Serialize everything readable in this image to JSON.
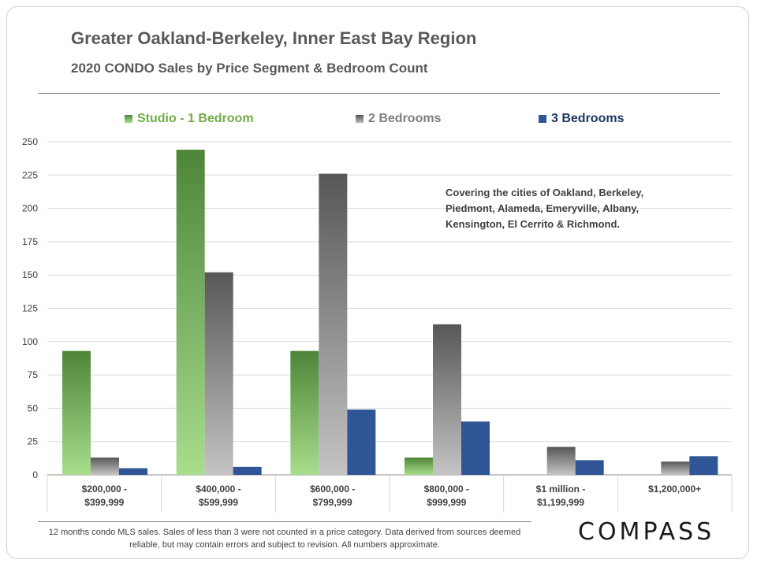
{
  "title": "Greater Oakland-Berkeley, Inner East Bay Region",
  "subtitle": "2020 CONDO Sales by Price Segment & Bedroom Count",
  "annotation": "Covering the cities of Oakland, Berkeley,\nPiedmont, Alameda, Emeryville, Albany,\nKensington, El Cerrito & Richmond.",
  "footnote": "12 months condo MLS sales.  Sales of less than 3 were not counted in a price category. Data derived from sources deemed reliable, but may contain errors and subject to revision. All numbers approximate.",
  "logo": "COMPASS",
  "chart_data": {
    "type": "bar",
    "categories": [
      [
        "$200,000 -",
        "$399,999"
      ],
      [
        "$400,000 -",
        "$599,999"
      ],
      [
        "$600,000 -",
        "$799,999"
      ],
      [
        "$800,000 -",
        "$999,999"
      ],
      [
        "$1 million -",
        "$1,199,999"
      ],
      [
        "$1,200,000+"
      ]
    ],
    "series": [
      {
        "name": "Studio - 1 Bedroom",
        "color": "#77b85a",
        "values": [
          93,
          244,
          93,
          13,
          0,
          0
        ]
      },
      {
        "name": "2 Bedrooms",
        "color": "#7a7a7a",
        "values": [
          13,
          152,
          226,
          113,
          21,
          10
        ]
      },
      {
        "name": "3 Bedrooms",
        "color": "#2f5597",
        "values": [
          5,
          6,
          49,
          40,
          11,
          14
        ]
      }
    ],
    "ylim": [
      0,
      250
    ],
    "yticks": [
      0,
      25,
      50,
      75,
      100,
      125,
      150,
      175,
      200,
      225,
      250
    ],
    "grid": true,
    "legend": "top"
  }
}
